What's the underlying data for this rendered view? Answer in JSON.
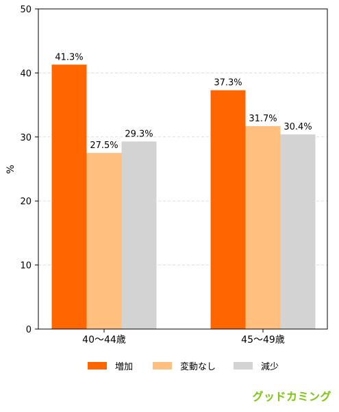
{
  "chart_data": {
    "type": "bar",
    "categories": [
      "40〜44歳",
      "45〜49歳"
    ],
    "series": [
      {
        "name": "増加",
        "values": [
          41.3,
          37.3
        ],
        "color": "#ff6600",
        "labels": [
          "41.3%",
          "37.3%"
        ]
      },
      {
        "name": "変動なし",
        "values": [
          27.5,
          31.7
        ],
        "color": "#ffbf7f",
        "labels": [
          "27.5%",
          "31.7%"
        ]
      },
      {
        "name": "減少",
        "values": [
          29.3,
          30.4
        ],
        "color": "#d3d3d3",
        "labels": [
          "29.3%",
          "30.4%"
        ]
      }
    ],
    "ylabel": "%",
    "ylim": [
      0,
      50
    ],
    "yticks": [
      "0",
      "10",
      "20",
      "30",
      "40",
      "50"
    ],
    "grid": true,
    "legend_position": "bottom"
  },
  "watermark": "グッドカミング"
}
